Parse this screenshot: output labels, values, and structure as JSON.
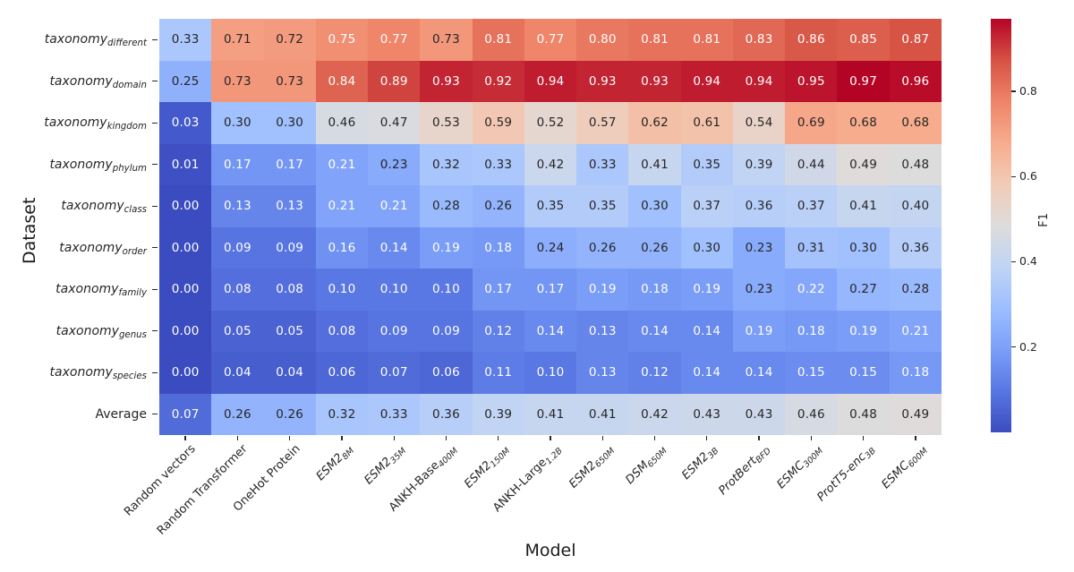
{
  "chart_data": {
    "type": "heatmap",
    "title": "",
    "xlabel": "Model",
    "ylabel": "Dataset",
    "colorbar_label": "F1",
    "vmin": 0.0,
    "vmax": 0.97,
    "colorbar_ticks": [
      0.2,
      0.4,
      0.6,
      0.8
    ],
    "value_format": ".2f",
    "grid": false,
    "legend_position": "right-colorbar",
    "x_categories": [
      {
        "main": "Random vectors",
        "sub": "",
        "italic": false
      },
      {
        "main": "Random Transformer",
        "sub": "",
        "italic": false
      },
      {
        "main": "OneHot Protein",
        "sub": "",
        "italic": false
      },
      {
        "main": "ESM2",
        "sub": "8M",
        "italic": true
      },
      {
        "main": "ESM2",
        "sub": "35M",
        "italic": true
      },
      {
        "main": "ANKH-Base",
        "sub": "400M",
        "italic": false
      },
      {
        "main": "ESM2",
        "sub": "150M",
        "italic": true
      },
      {
        "main": "ANKH-Large",
        "sub": "1.2B",
        "italic": false
      },
      {
        "main": "ESM2",
        "sub": "650M",
        "italic": true
      },
      {
        "main": "DSM",
        "sub": "650M",
        "italic": true
      },
      {
        "main": "ESM2",
        "sub": "3B",
        "italic": true
      },
      {
        "main": "ProtBert",
        "sub": "BFD",
        "italic": true
      },
      {
        "main": "ESMC",
        "sub": "300M",
        "italic": true
      },
      {
        "main": "ProtT5-enc",
        "sub": "3B",
        "italic": true
      },
      {
        "main": "ESMC",
        "sub": "600M",
        "italic": true
      }
    ],
    "y_categories": [
      {
        "main": "taxonomy",
        "sub": "different",
        "italic": true
      },
      {
        "main": "taxonomy",
        "sub": "domain",
        "italic": true
      },
      {
        "main": "taxonomy",
        "sub": "kingdom",
        "italic": true
      },
      {
        "main": "taxonomy",
        "sub": "phylum",
        "italic": true
      },
      {
        "main": "taxonomy",
        "sub": "class",
        "italic": true
      },
      {
        "main": "taxonomy",
        "sub": "order",
        "italic": true
      },
      {
        "main": "taxonomy",
        "sub": "family",
        "italic": true
      },
      {
        "main": "taxonomy",
        "sub": "genus",
        "italic": true
      },
      {
        "main": "taxonomy",
        "sub": "species",
        "italic": true
      },
      {
        "main": "Average",
        "sub": "",
        "italic": false
      }
    ],
    "values": [
      [
        0.33,
        0.71,
        0.72,
        0.75,
        0.77,
        0.73,
        0.81,
        0.77,
        0.8,
        0.81,
        0.81,
        0.83,
        0.86,
        0.85,
        0.87
      ],
      [
        0.25,
        0.73,
        0.73,
        0.84,
        0.89,
        0.93,
        0.92,
        0.94,
        0.93,
        0.93,
        0.94,
        0.94,
        0.95,
        0.97,
        0.96
      ],
      [
        0.03,
        0.3,
        0.3,
        0.46,
        0.47,
        0.53,
        0.59,
        0.52,
        0.57,
        0.62,
        0.61,
        0.54,
        0.69,
        0.68,
        0.68
      ],
      [
        0.01,
        0.17,
        0.17,
        0.21,
        0.23,
        0.32,
        0.33,
        0.42,
        0.33,
        0.41,
        0.35,
        0.39,
        0.44,
        0.49,
        0.48
      ],
      [
        0.0,
        0.13,
        0.13,
        0.21,
        0.21,
        0.28,
        0.26,
        0.35,
        0.35,
        0.3,
        0.37,
        0.36,
        0.37,
        0.41,
        0.4
      ],
      [
        0.0,
        0.09,
        0.09,
        0.16,
        0.14,
        0.19,
        0.18,
        0.24,
        0.26,
        0.26,
        0.3,
        0.23,
        0.31,
        0.3,
        0.36
      ],
      [
        0.0,
        0.08,
        0.08,
        0.1,
        0.1,
        0.1,
        0.17,
        0.17,
        0.19,
        0.18,
        0.19,
        0.23,
        0.22,
        0.27,
        0.28
      ],
      [
        0.0,
        0.05,
        0.05,
        0.08,
        0.09,
        0.09,
        0.12,
        0.14,
        0.13,
        0.14,
        0.14,
        0.19,
        0.18,
        0.19,
        0.21
      ],
      [
        0.0,
        0.04,
        0.04,
        0.06,
        0.07,
        0.06,
        0.11,
        0.1,
        0.13,
        0.12,
        0.14,
        0.14,
        0.15,
        0.15,
        0.18
      ],
      [
        0.07,
        0.26,
        0.26,
        0.32,
        0.33,
        0.36,
        0.39,
        0.41,
        0.41,
        0.42,
        0.43,
        0.43,
        0.46,
        0.48,
        0.49
      ]
    ],
    "colormap": {
      "name": "coolwarm",
      "anchors": [
        "#3b4cc0",
        "#5977e3",
        "#7b9ff9",
        "#9ebeff",
        "#c0d4f5",
        "#dddcdc",
        "#f2cbb7",
        "#f7ac8e",
        "#ee8468",
        "#d65244",
        "#b40426"
      ]
    },
    "annotation_colors": {
      "dark": "#262626",
      "light": "#ffffff"
    },
    "luminance_threshold": 0.408
  }
}
